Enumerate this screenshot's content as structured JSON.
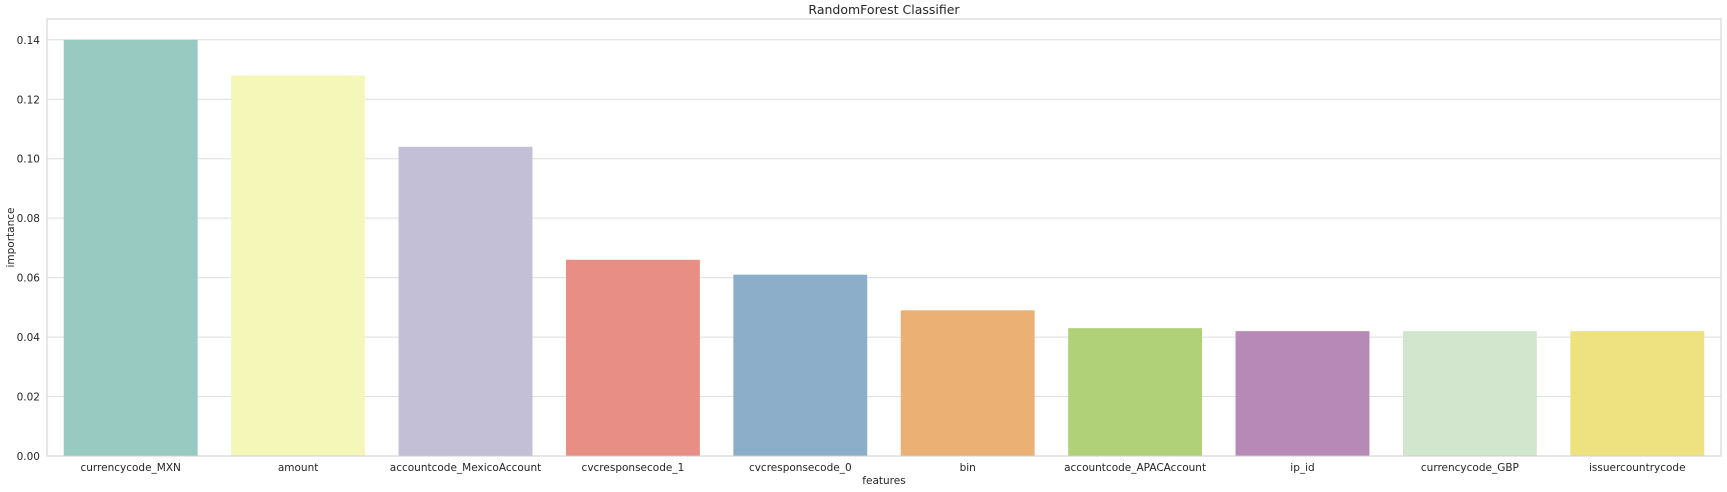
{
  "chart_data": {
    "type": "bar",
    "title": "RandomForest Classifier",
    "xlabel": "features",
    "ylabel": "importance",
    "categories": [
      "currencycode_MXN",
      "amount",
      "accountcode_MexicoAccount",
      "cvcresponsecode_1",
      "cvcresponsecode_0",
      "bin",
      "accountcode_APACAccount",
      "ip_id",
      "currencycode_GBP",
      "issuercountrycode"
    ],
    "values": [
      0.14,
      0.128,
      0.104,
      0.066,
      0.061,
      0.049,
      0.043,
      0.042,
      0.042,
      0.042
    ],
    "colors": [
      "#99cac2",
      "#f5f7b9",
      "#c2bfd6",
      "#e98e85",
      "#8caec8",
      "#ebb174",
      "#b0d178",
      "#b689b6",
      "#d1e6cc",
      "#ede180"
    ],
    "ylim": [
      0,
      0.147
    ],
    "yticks": [
      0.0,
      0.02,
      0.04,
      0.06,
      0.08,
      0.1,
      0.12,
      0.14
    ],
    "ytick_labels": [
      "0.00",
      "0.02",
      "0.04",
      "0.06",
      "0.08",
      "0.10",
      "0.12",
      "0.14"
    ],
    "grid": true
  }
}
